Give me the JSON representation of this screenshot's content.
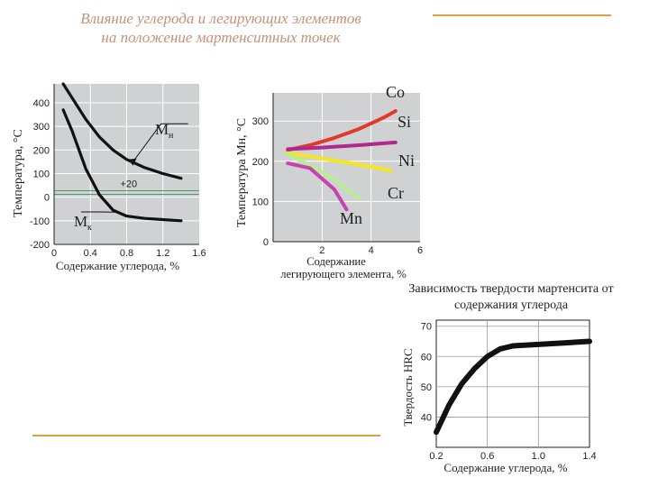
{
  "slide": {
    "title_line1": "Влияние углерода и легирующих элементов",
    "title_line2": "на положение мартенситных точек",
    "colors": {
      "title": "#c8907a",
      "rule": "#d9a23a",
      "plot_bg": "#cfd1d2"
    }
  },
  "chart_data": [
    {
      "type": "line",
      "title": "",
      "xlabel": "Содержание углерода, %",
      "ylabel": "Температура, °С",
      "xlim": [
        0,
        1.6
      ],
      "ylim": [
        -200,
        480
      ],
      "xticks": [
        "0",
        "0.4",
        "0.8",
        "1.2",
        "1.6"
      ],
      "yticks": [
        "400",
        "300",
        "200",
        "100",
        "0",
        "-100",
        "-200"
      ],
      "reference_line": {
        "value": 20,
        "label": "+20"
      },
      "series": [
        {
          "name": "Mн",
          "color": "#111111",
          "x": [
            0.1,
            0.2,
            0.35,
            0.5,
            0.65,
            0.8,
            1.0,
            1.2,
            1.4
          ],
          "y": [
            480,
            420,
            330,
            255,
            200,
            160,
            125,
            100,
            80
          ]
        },
        {
          "name": "Mк",
          "color": "#111111",
          "x": [
            0.1,
            0.2,
            0.35,
            0.5,
            0.65,
            0.8,
            1.0,
            1.2,
            1.4
          ],
          "y": [
            370,
            280,
            120,
            10,
            -55,
            -80,
            -90,
            -95,
            -100
          ]
        }
      ]
    },
    {
      "type": "line",
      "title": "",
      "xlabel": "Содержание легирующего элемента, %",
      "ylabel": "Температура Mн, °С",
      "xlim": [
        0,
        6
      ],
      "ylim": [
        0,
        370
      ],
      "xticks": [
        "2",
        "4",
        "6"
      ],
      "yticks": [
        "0",
        "100",
        "200",
        "300"
      ],
      "series": [
        {
          "name": "Co",
          "color": "#e23a2a",
          "x": [
            0.6,
            1.5,
            2.5,
            3.5,
            4.5,
            5.0
          ],
          "y": [
            228,
            240,
            258,
            280,
            308,
            325
          ]
        },
        {
          "name": "Si",
          "color": "#b02a8e",
          "x": [
            0.6,
            2.0,
            3.5,
            5.0
          ],
          "y": [
            230,
            234,
            240,
            247
          ]
        },
        {
          "name": "Ni",
          "color": "#f3e81e",
          "x": [
            0.6,
            2.0,
            3.5,
            4.8
          ],
          "y": [
            220,
            207,
            192,
            177
          ]
        },
        {
          "name": "Cr",
          "color": "#b7ef8e",
          "x": [
            0.6,
            1.5,
            2.5,
            3.5
          ],
          "y": [
            217,
            190,
            155,
            108
          ]
        },
        {
          "name": "Mn",
          "color": "#c542b0",
          "x": [
            0.6,
            1.5,
            2.5,
            3.0
          ],
          "y": [
            195,
            183,
            130,
            80
          ]
        }
      ]
    },
    {
      "type": "line",
      "title": "Зависимость твердости мартенсита от содержания углерода",
      "xlabel": "Содержание углерода, %",
      "ylabel": "Твердость HRC",
      "xlim": [
        0.2,
        1.4
      ],
      "ylim": [
        30,
        72
      ],
      "xticks": [
        "0.2",
        "0.6",
        "1.0",
        "1.4"
      ],
      "yticks": [
        "70",
        "60",
        "50",
        "40"
      ],
      "series": [
        {
          "name": "",
          "color": "#111111",
          "x": [
            0.2,
            0.3,
            0.4,
            0.5,
            0.6,
            0.7,
            0.8,
            1.0,
            1.2,
            1.4
          ],
          "y": [
            35,
            44,
            51,
            56,
            60,
            62.5,
            63.5,
            64,
            64.5,
            65
          ]
        }
      ]
    }
  ]
}
